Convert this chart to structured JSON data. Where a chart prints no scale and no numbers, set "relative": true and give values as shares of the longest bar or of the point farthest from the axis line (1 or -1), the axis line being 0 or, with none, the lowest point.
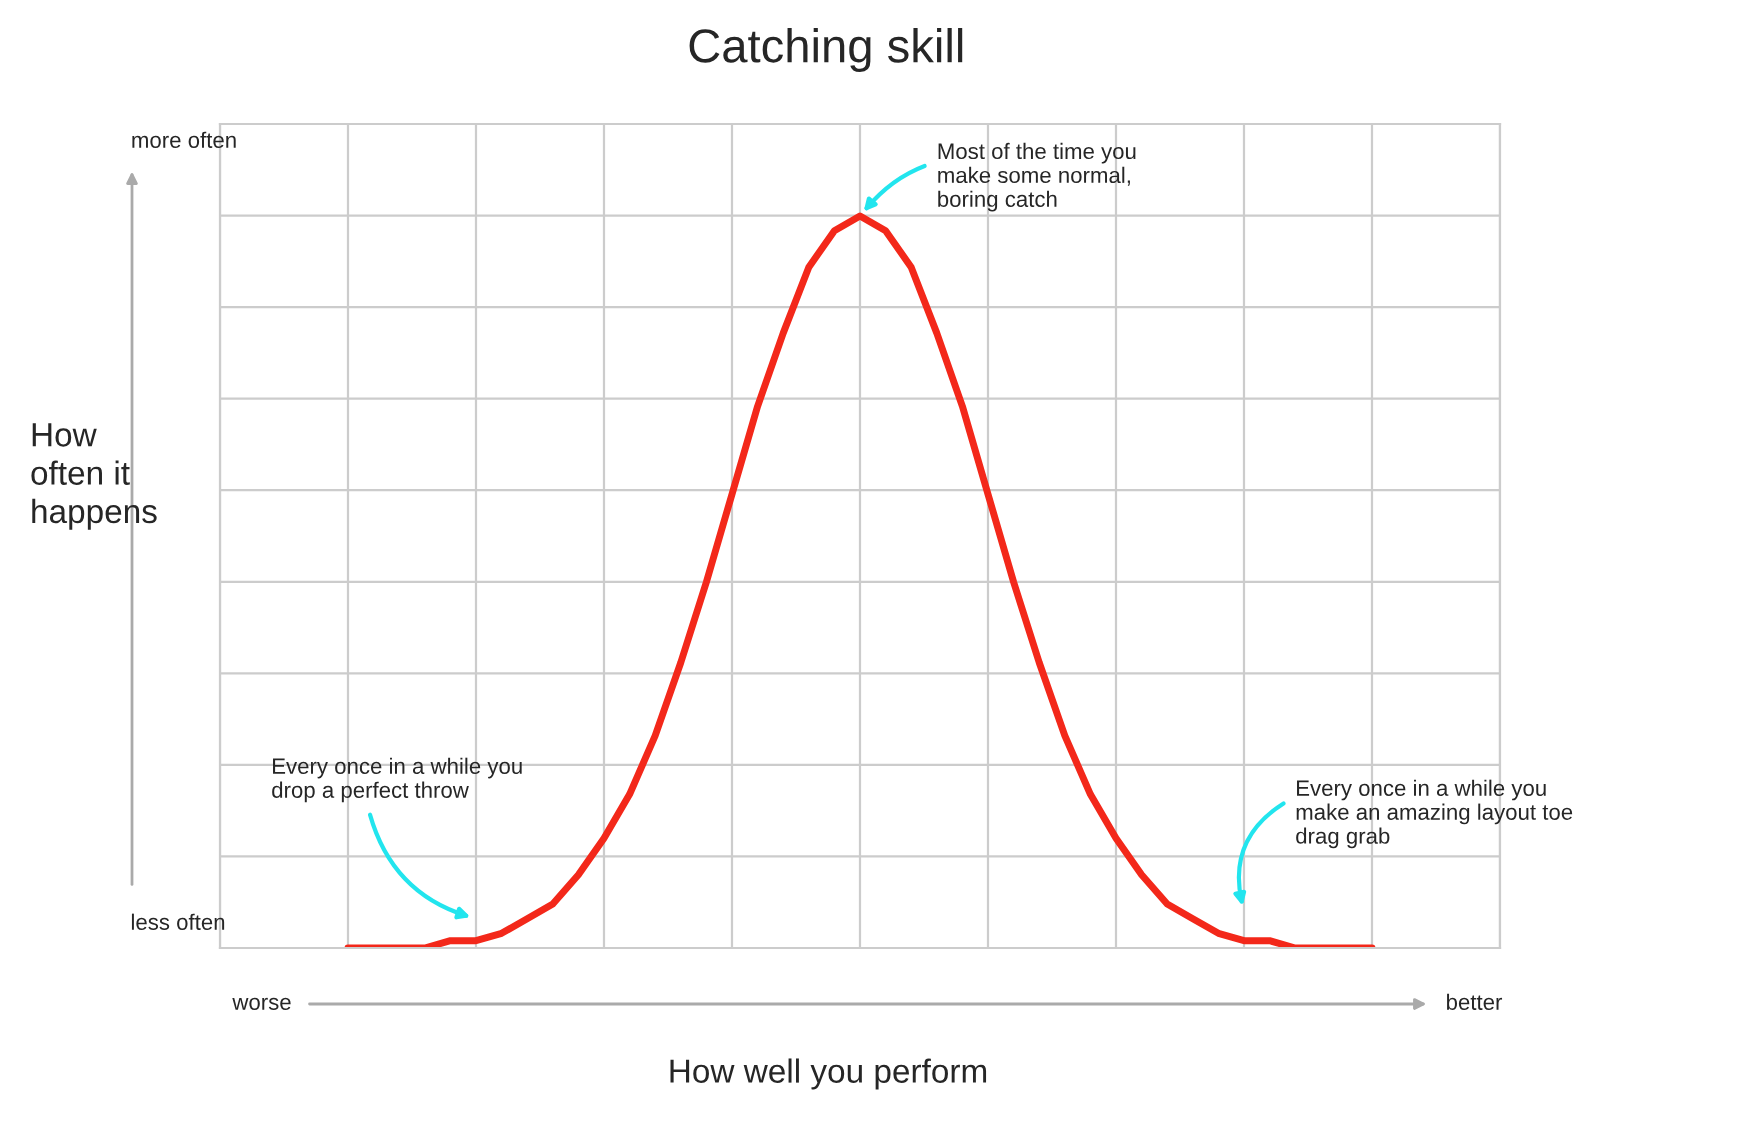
{
  "chart_data": {
    "type": "line",
    "title": "Catching skill",
    "xlabel": "How well you perform",
    "ylabel": "How\noften it\nhappens",
    "relative": true,
    "grid": true,
    "marker": "none",
    "line_style": "solid",
    "categories": [
      null,
      null,
      null,
      null,
      null,
      null,
      null,
      null,
      null,
      null,
      null,
      null,
      null,
      null,
      null,
      null,
      null,
      null,
      null,
      null,
      null,
      null,
      null,
      null,
      null,
      null,
      null,
      null,
      null,
      null,
      null,
      null,
      null,
      null,
      null,
      null,
      null,
      null,
      null,
      null,
      null,
      null,
      null,
      null,
      null,
      null,
      null,
      null,
      null,
      null,
      null
    ],
    "series": [
      {
        "color": "#f3281a",
        "values": [
          null,
          null,
          null,
          null,
          null,
          0,
          0,
          0,
          0,
          0.01,
          0.01,
          0.02,
          0.04,
          0.06,
          0.1,
          0.15,
          0.21,
          0.29,
          0.39,
          0.5,
          0.62,
          0.74,
          0.84,
          0.93,
          0.98,
          1,
          0.98,
          0.93,
          0.84,
          0.74,
          0.62,
          0.5,
          0.39,
          0.29,
          0.21,
          0.15,
          0.1,
          0.06,
          0.04,
          0.02,
          0.01,
          0.01,
          0,
          0,
          0,
          0,
          null,
          null,
          null,
          null,
          null
        ]
      }
    ],
    "annotations": [
      "Most of the time you\nmake some normal,\nboring catch",
      "Every once in a while you\ndrop a perfect throw",
      "Every once in a while you\nmake an amazing layout toe\ndrag grab",
      "more often",
      "less often",
      "worse",
      "better"
    ]
  }
}
